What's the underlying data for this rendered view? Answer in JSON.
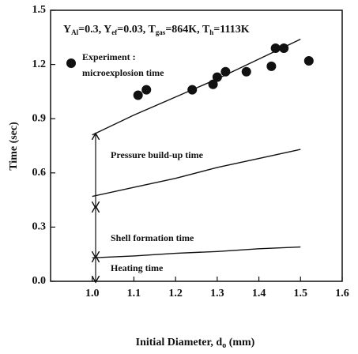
{
  "chart_data": {
    "type": "scatter",
    "annotation": [
      {
        "base": "Y",
        "sub": "Al",
        "rest": "=0.3, "
      },
      {
        "base": "Y",
        "sub": "ef",
        "rest": "=0.03, "
      },
      {
        "base": "T",
        "sub": "gas",
        "rest": "=864K, "
      },
      {
        "base": "T",
        "sub": "h",
        "rest": "=1113K"
      }
    ],
    "x_label": {
      "text": "Initial Diameter, d",
      "sub": "o",
      "unit": " (mm)"
    },
    "y_label": "Time (sec)",
    "region_labels": [
      "Pressure build-up time",
      "Shell formation time",
      "Heating time"
    ],
    "xlim": [
      0.9,
      1.6
    ],
    "ylim": [
      0,
      1.5
    ],
    "xticks": [
      {
        "value": 1,
        "label": "1.0"
      },
      {
        "value": 1.1,
        "label": "1.1"
      },
      {
        "value": 1.2,
        "label": "1.2"
      },
      {
        "value": 1.3,
        "label": "1.3"
      },
      {
        "value": 1.4,
        "label": "1.4"
      },
      {
        "value": 1.5,
        "label": "1.5"
      },
      {
        "value": 1.6,
        "label": "1.6"
      }
    ],
    "yticks": [
      {
        "value": 0,
        "label": "0.0"
      },
      {
        "value": 0.3,
        "label": "0.3"
      },
      {
        "value": 0.6,
        "label": "0.6"
      },
      {
        "value": 0.9,
        "label": "0.9"
      },
      {
        "value": 1.2,
        "label": "1.2"
      },
      {
        "value": 1.5,
        "label": "1.5"
      }
    ],
    "series": [
      {
        "type": "scatter",
        "name": [
          "Experiment :",
          "microexplosion time"
        ],
        "color": "#111",
        "x": [
          1.11,
          1.13,
          1.24,
          1.29,
          1.3,
          1.32,
          1.37,
          1.43,
          1.44,
          1.46,
          1.52
        ],
        "values": [
          1.03,
          1.06,
          1.06,
          1.09,
          1.13,
          1.16,
          1.16,
          1.19,
          1.29,
          1.29,
          1.22
        ]
      },
      {
        "type": "line",
        "color": "#111",
        "x": [
          1.0,
          1.1,
          1.2,
          1.3,
          1.4,
          1.5
        ],
        "values": [
          0.81,
          0.92,
          1.02,
          1.12,
          1.23,
          1.34
        ]
      },
      {
        "type": "line",
        "color": "#111",
        "x": [
          1.0,
          1.1,
          1.2,
          1.3,
          1.4,
          1.5
        ],
        "values": [
          0.47,
          0.52,
          0.57,
          0.63,
          0.68,
          0.73
        ]
      },
      {
        "type": "line",
        "color": "#111",
        "x": [
          1.0,
          1.1,
          1.2,
          1.3,
          1.4,
          1.5
        ],
        "values": [
          0.13,
          0.14,
          0.155,
          0.165,
          0.18,
          0.19
        ]
      }
    ]
  }
}
